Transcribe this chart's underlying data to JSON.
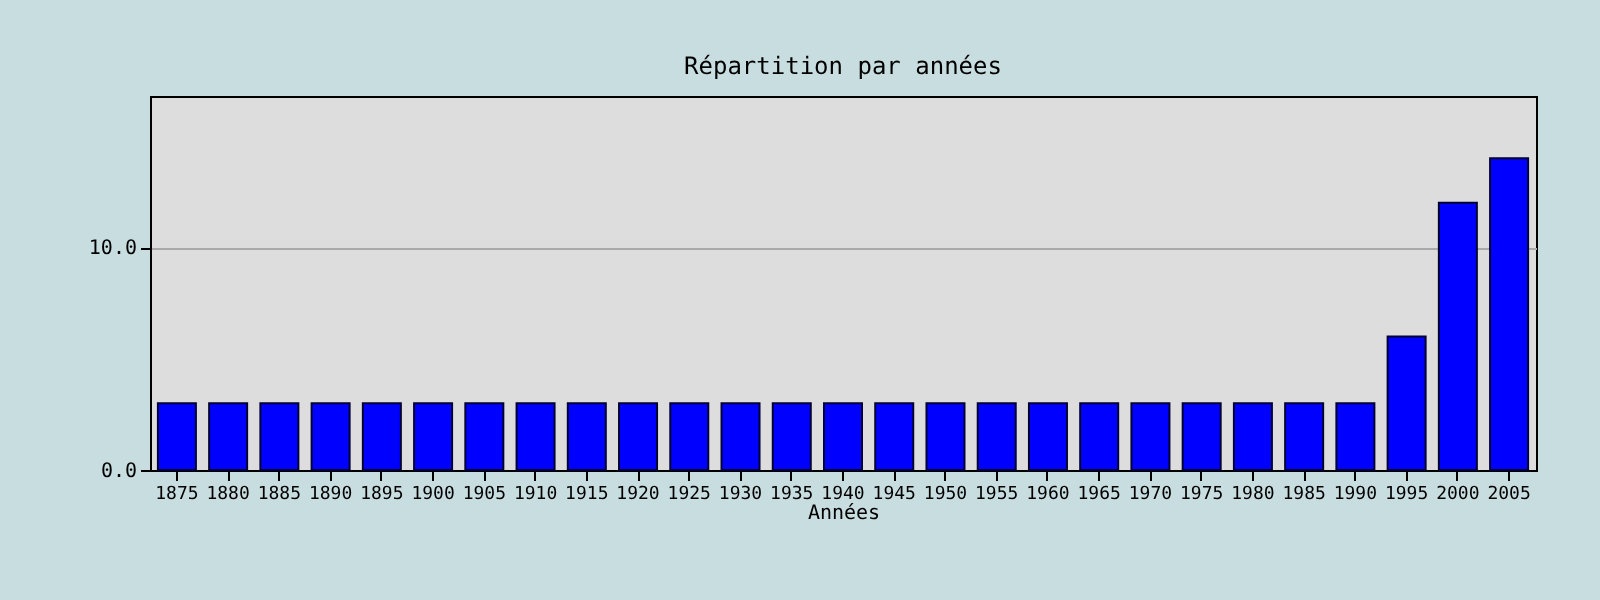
{
  "chart_data": {
    "type": "bar",
    "title": "Répartition par années",
    "xlabel": "Années",
    "categories": [
      "1875",
      "1880",
      "1885",
      "1890",
      "1895",
      "1900",
      "1905",
      "1910",
      "1915",
      "1920",
      "1925",
      "1930",
      "1935",
      "1940",
      "1945",
      "1950",
      "1955",
      "1960",
      "1965",
      "1970",
      "1975",
      "1980",
      "1985",
      "1990",
      "1995",
      "2000",
      "2005"
    ],
    "values": [
      3,
      3,
      3,
      3,
      3,
      3,
      3,
      3,
      3,
      3,
      3,
      3,
      3,
      3,
      3,
      3,
      3,
      3,
      3,
      3,
      3,
      3,
      3,
      3,
      6,
      12,
      14
    ],
    "color": "#0000ff",
    "ylim": [
      0,
      16.8
    ],
    "yticks": [
      {
        "value": 0,
        "label": "0.0"
      },
      {
        "value": 10,
        "label": "10.0"
      }
    ],
    "grid": "y"
  }
}
